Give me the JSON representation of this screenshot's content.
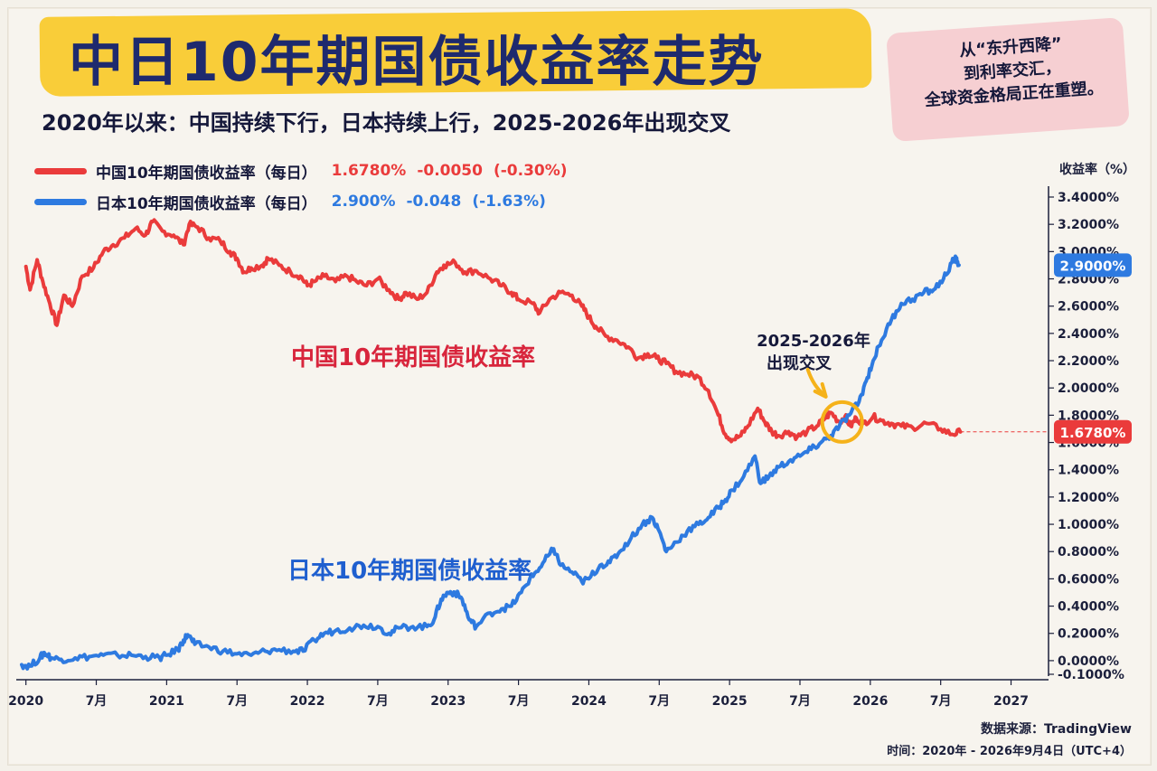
{
  "header": {
    "title": "中日10年期国债收益率走势",
    "subtitle": "2020年以来：中国持续下行，日本持续上行，2025-2026年出现交叉",
    "note_lines": [
      "从“东升西降”",
      "到利率交汇，",
      "全球资金格局正在重塑。"
    ]
  },
  "legend": [
    {
      "name": "中国10年期国债收益率（每日）",
      "last": "1.6780%",
      "change": "-0.0050",
      "pct": "(-0.30%)",
      "color": "#ea3b3b"
    },
    {
      "name": "日本10年期国债收益率（每日）",
      "last": "2.900%",
      "change": "-0.048",
      "pct": "(-1.63%)",
      "color": "#2e7ae0"
    }
  ],
  "footer": {
    "source": "数据来源：TradingView",
    "time": "时间：2020年 - 2026年9月4日（UTC+4）"
  },
  "chart_data": {
    "type": "line",
    "ylabel": "收益率（%）",
    "ylim": [
      -0.1,
      3.4
    ],
    "y_ticks": [
      "3.4000%",
      "3.2000%",
      "3.0000%",
      "2.8000%",
      "2.6000%",
      "2.4000%",
      "2.2000%",
      "2.0000%",
      "1.8000%",
      "1.6000%",
      "1.4000%",
      "1.2000%",
      "1.0000%",
      "0.8000%",
      "0.6000%",
      "0.4000%",
      "0.2000%",
      "0.0000%",
      "-0.1000%"
    ],
    "xlim": [
      2019.97,
      2027.17
    ],
    "x_ticks": [
      {
        "t": 2020.0,
        "label": "2020"
      },
      {
        "t": 2020.5,
        "label": "7月"
      },
      {
        "t": 2021.0,
        "label": "2021"
      },
      {
        "t": 2021.5,
        "label": "7月"
      },
      {
        "t": 2022.0,
        "label": "2022"
      },
      {
        "t": 2022.5,
        "label": "7月"
      },
      {
        "t": 2023.0,
        "label": "2023"
      },
      {
        "t": 2023.5,
        "label": "7月"
      },
      {
        "t": 2024.0,
        "label": "2024"
      },
      {
        "t": 2024.5,
        "label": "7月"
      },
      {
        "t": 2025.0,
        "label": "2025"
      },
      {
        "t": 2025.5,
        "label": "7月"
      },
      {
        "t": 2026.0,
        "label": "2026"
      },
      {
        "t": 2026.5,
        "label": "7月"
      },
      {
        "t": 2027.0,
        "label": "2027"
      }
    ],
    "series": [
      {
        "name": "中国10年期国债收益率",
        "color": "#ea3b3b",
        "last_label": "1.6780%",
        "last_value": 1.678,
        "points": [
          [
            2020.0,
            2.89
          ],
          [
            2020.03,
            2.72
          ],
          [
            2020.08,
            2.94
          ],
          [
            2020.12,
            2.78
          ],
          [
            2020.17,
            2.62
          ],
          [
            2020.22,
            2.46
          ],
          [
            2020.27,
            2.68
          ],
          [
            2020.33,
            2.6
          ],
          [
            2020.4,
            2.82
          ],
          [
            2020.48,
            2.88
          ],
          [
            2020.55,
            3.0
          ],
          [
            2020.62,
            3.05
          ],
          [
            2020.7,
            3.1
          ],
          [
            2020.78,
            3.17
          ],
          [
            2020.85,
            3.12
          ],
          [
            2020.9,
            3.22
          ],
          [
            2020.97,
            3.15
          ],
          [
            2021.05,
            3.12
          ],
          [
            2021.12,
            3.05
          ],
          [
            2021.16,
            3.2
          ],
          [
            2021.22,
            3.18
          ],
          [
            2021.3,
            3.1
          ],
          [
            2021.38,
            3.08
          ],
          [
            2021.45,
            3.0
          ],
          [
            2021.5,
            2.95
          ],
          [
            2021.55,
            2.85
          ],
          [
            2021.6,
            2.88
          ],
          [
            2021.68,
            2.9
          ],
          [
            2021.72,
            2.95
          ],
          [
            2021.8,
            2.9
          ],
          [
            2021.88,
            2.85
          ],
          [
            2021.95,
            2.82
          ],
          [
            2022.0,
            2.75
          ],
          [
            2022.05,
            2.78
          ],
          [
            2022.12,
            2.82
          ],
          [
            2022.2,
            2.78
          ],
          [
            2022.28,
            2.82
          ],
          [
            2022.35,
            2.78
          ],
          [
            2022.42,
            2.75
          ],
          [
            2022.5,
            2.8
          ],
          [
            2022.58,
            2.72
          ],
          [
            2022.65,
            2.65
          ],
          [
            2022.7,
            2.7
          ],
          [
            2022.78,
            2.65
          ],
          [
            2022.85,
            2.7
          ],
          [
            2022.92,
            2.85
          ],
          [
            2022.97,
            2.9
          ],
          [
            2023.05,
            2.92
          ],
          [
            2023.12,
            2.85
          ],
          [
            2023.2,
            2.86
          ],
          [
            2023.3,
            2.8
          ],
          [
            2023.38,
            2.75
          ],
          [
            2023.45,
            2.7
          ],
          [
            2023.5,
            2.65
          ],
          [
            2023.6,
            2.62
          ],
          [
            2023.65,
            2.55
          ],
          [
            2023.72,
            2.65
          ],
          [
            2023.8,
            2.7
          ],
          [
            2023.88,
            2.68
          ],
          [
            2023.95,
            2.6
          ],
          [
            2024.0,
            2.52
          ],
          [
            2024.05,
            2.45
          ],
          [
            2024.12,
            2.38
          ],
          [
            2024.2,
            2.35
          ],
          [
            2024.28,
            2.3
          ],
          [
            2024.35,
            2.22
          ],
          [
            2024.42,
            2.25
          ],
          [
            2024.48,
            2.22
          ],
          [
            2024.55,
            2.18
          ],
          [
            2024.62,
            2.12
          ],
          [
            2024.7,
            2.1
          ],
          [
            2024.78,
            2.08
          ],
          [
            2024.85,
            1.98
          ],
          [
            2024.92,
            1.8
          ],
          [
            2024.97,
            1.66
          ],
          [
            2025.02,
            1.62
          ],
          [
            2025.08,
            1.65
          ],
          [
            2025.13,
            1.72
          ],
          [
            2025.2,
            1.85
          ],
          [
            2025.25,
            1.75
          ],
          [
            2025.3,
            1.68
          ],
          [
            2025.35,
            1.65
          ],
          [
            2025.42,
            1.68
          ],
          [
            2025.48,
            1.64
          ],
          [
            2025.55,
            1.68
          ],
          [
            2025.62,
            1.72
          ],
          [
            2025.68,
            1.78
          ],
          [
            2025.72,
            1.82
          ],
          [
            2025.78,
            1.75
          ],
          [
            2025.82,
            1.79
          ],
          [
            2025.86,
            1.72
          ],
          [
            2025.9,
            1.78
          ],
          [
            2025.95,
            1.74
          ],
          [
            2026.02,
            1.79
          ],
          [
            2026.08,
            1.76
          ],
          [
            2026.15,
            1.74
          ],
          [
            2026.22,
            1.72
          ],
          [
            2026.3,
            1.71
          ],
          [
            2026.4,
            1.74
          ],
          [
            2026.5,
            1.7
          ],
          [
            2026.58,
            1.66
          ],
          [
            2026.64,
            1.678
          ]
        ]
      },
      {
        "name": "日本10年期国债收益率",
        "color": "#2e7ae0",
        "last_label": "2.9000%",
        "last_value": 2.9,
        "points": [
          [
            2019.97,
            -0.03
          ],
          [
            2020.03,
            -0.04
          ],
          [
            2020.1,
            0.02
          ],
          [
            2020.13,
            0.06
          ],
          [
            2020.18,
            0.02
          ],
          [
            2020.25,
            0.01
          ],
          [
            2020.35,
            0.02
          ],
          [
            2020.45,
            0.03
          ],
          [
            2020.55,
            0.04
          ],
          [
            2020.65,
            0.04
          ],
          [
            2020.75,
            0.04
          ],
          [
            2020.85,
            0.03
          ],
          [
            2020.95,
            0.02
          ],
          [
            2021.0,
            0.04
          ],
          [
            2021.08,
            0.08
          ],
          [
            2021.12,
            0.15
          ],
          [
            2021.15,
            0.19
          ],
          [
            2021.2,
            0.12
          ],
          [
            2021.3,
            0.1
          ],
          [
            2021.4,
            0.07
          ],
          [
            2021.5,
            0.05
          ],
          [
            2021.6,
            0.04
          ],
          [
            2021.7,
            0.07
          ],
          [
            2021.8,
            0.08
          ],
          [
            2021.9,
            0.07
          ],
          [
            2021.97,
            0.07
          ],
          [
            2022.05,
            0.15
          ],
          [
            2022.12,
            0.2
          ],
          [
            2022.2,
            0.22
          ],
          [
            2022.3,
            0.24
          ],
          [
            2022.4,
            0.26
          ],
          [
            2022.5,
            0.25
          ],
          [
            2022.58,
            0.2
          ],
          [
            2022.65,
            0.24
          ],
          [
            2022.75,
            0.25
          ],
          [
            2022.85,
            0.25
          ],
          [
            2022.9,
            0.3
          ],
          [
            2022.95,
            0.45
          ],
          [
            2023.0,
            0.5
          ],
          [
            2023.05,
            0.5
          ],
          [
            2023.1,
            0.45
          ],
          [
            2023.15,
            0.3
          ],
          [
            2023.2,
            0.25
          ],
          [
            2023.3,
            0.35
          ],
          [
            2023.38,
            0.38
          ],
          [
            2023.45,
            0.4
          ],
          [
            2023.52,
            0.5
          ],
          [
            2023.58,
            0.6
          ],
          [
            2023.65,
            0.68
          ],
          [
            2023.72,
            0.78
          ],
          [
            2023.75,
            0.82
          ],
          [
            2023.8,
            0.7
          ],
          [
            2023.88,
            0.65
          ],
          [
            2023.95,
            0.58
          ],
          [
            2024.0,
            0.6
          ],
          [
            2024.08,
            0.7
          ],
          [
            2024.15,
            0.72
          ],
          [
            2024.22,
            0.8
          ],
          [
            2024.3,
            0.9
          ],
          [
            2024.38,
            1.0
          ],
          [
            2024.45,
            1.05
          ],
          [
            2024.5,
            0.95
          ],
          [
            2024.55,
            0.8
          ],
          [
            2024.62,
            0.87
          ],
          [
            2024.7,
            0.95
          ],
          [
            2024.78,
            1.0
          ],
          [
            2024.85,
            1.05
          ],
          [
            2024.92,
            1.12
          ],
          [
            2024.97,
            1.18
          ],
          [
            2025.02,
            1.25
          ],
          [
            2025.1,
            1.35
          ],
          [
            2025.18,
            1.5
          ],
          [
            2025.22,
            1.3
          ],
          [
            2025.28,
            1.35
          ],
          [
            2025.35,
            1.42
          ],
          [
            2025.42,
            1.46
          ],
          [
            2025.5,
            1.5
          ],
          [
            2025.58,
            1.55
          ],
          [
            2025.65,
            1.6
          ],
          [
            2025.72,
            1.65
          ],
          [
            2025.78,
            1.72
          ],
          [
            2025.85,
            1.8
          ],
          [
            2025.92,
            1.9
          ],
          [
            2025.97,
            2.05
          ],
          [
            2026.02,
            2.2
          ],
          [
            2026.08,
            2.35
          ],
          [
            2026.15,
            2.5
          ],
          [
            2026.22,
            2.62
          ],
          [
            2026.3,
            2.65
          ],
          [
            2026.38,
            2.7
          ],
          [
            2026.45,
            2.72
          ],
          [
            2026.52,
            2.8
          ],
          [
            2026.58,
            2.92
          ],
          [
            2026.61,
            2.95
          ],
          [
            2026.63,
            2.9
          ]
        ]
      }
    ],
    "annotations": [
      {
        "text": "中国10年期国债收益率",
        "color": "#d8253c"
      },
      {
        "text": "日本10年期国债收益率",
        "color": "#1f5fcf"
      },
      {
        "text_lines": [
          "2025-2026年",
          "出现交叉"
        ],
        "color": "#15183a"
      }
    ],
    "crossover": {
      "t": 2025.8,
      "value": 1.75
    },
    "grid": false
  }
}
